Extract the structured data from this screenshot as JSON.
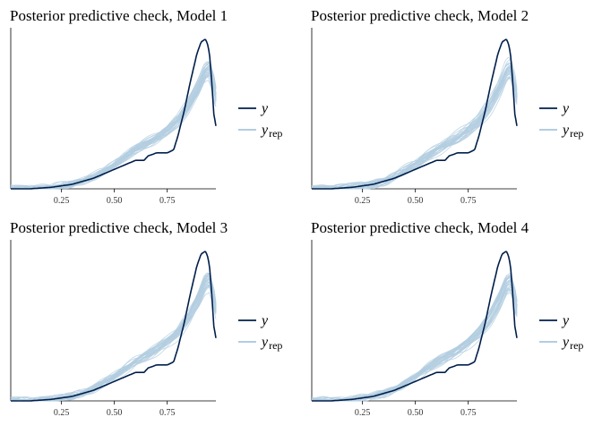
{
  "chart_data": [
    {
      "type": "line",
      "title": "Posterior predictive check, Model 1",
      "xticks": [
        0.25,
        0.5,
        0.75
      ],
      "xtick_labels": [
        "0.25",
        "0.50",
        "0.75"
      ],
      "xlim": [
        0.01,
        0.98
      ],
      "ylim": [
        0,
        1.0
      ],
      "y_axis_ticks_shown": false,
      "legend_position": "right",
      "legend": [
        {
          "label_main": "y",
          "label_sub": "",
          "color": "#011f4b"
        },
        {
          "label_main": "y",
          "label_sub": "rep",
          "color": "#b3cde0"
        }
      ],
      "series": [
        {
          "name": "y",
          "color": "#011f4b",
          "x": [
            0.01,
            0.1,
            0.2,
            0.25,
            0.3,
            0.35,
            0.4,
            0.45,
            0.5,
            0.55,
            0.6,
            0.64,
            0.66,
            0.7,
            0.75,
            0.78,
            0.8,
            0.83,
            0.86,
            0.89,
            0.91,
            0.93,
            0.94,
            0.95,
            0.96,
            0.97,
            0.98
          ],
          "y": [
            0.0,
            0.0,
            0.01,
            0.02,
            0.03,
            0.05,
            0.07,
            0.1,
            0.13,
            0.16,
            0.19,
            0.19,
            0.22,
            0.24,
            0.24,
            0.26,
            0.35,
            0.52,
            0.72,
            0.9,
            0.98,
            1.0,
            0.97,
            0.9,
            0.72,
            0.5,
            0.42
          ]
        },
        {
          "name": "y_rep",
          "color": "#b3cde0",
          "x": [
            0.01,
            0.1,
            0.2,
            0.25,
            0.3,
            0.35,
            0.4,
            0.45,
            0.5,
            0.55,
            0.6,
            0.65,
            0.7,
            0.75,
            0.8,
            0.85,
            0.9,
            0.93,
            0.95,
            0.97,
            0.98
          ],
          "y": [
            0.0,
            0.0,
            0.01,
            0.02,
            0.03,
            0.05,
            0.08,
            0.12,
            0.16,
            0.21,
            0.26,
            0.3,
            0.34,
            0.39,
            0.45,
            0.55,
            0.68,
            0.78,
            0.8,
            0.7,
            0.6
          ]
        }
      ]
    },
    {
      "type": "line",
      "title": "Posterior predictive check, Model 2",
      "xticks": [
        0.25,
        0.5,
        0.75
      ],
      "xtick_labels": [
        "0.25",
        "0.50",
        "0.75"
      ],
      "xlim": [
        0.01,
        0.98
      ],
      "ylim": [
        0,
        1.0
      ],
      "y_axis_ticks_shown": false,
      "legend_position": "right",
      "legend": [
        {
          "label_main": "y",
          "label_sub": "",
          "color": "#011f4b"
        },
        {
          "label_main": "y",
          "label_sub": "rep",
          "color": "#b3cde0"
        }
      ],
      "series": [
        {
          "name": "y",
          "color": "#011f4b",
          "x": [
            0.01,
            0.1,
            0.2,
            0.25,
            0.3,
            0.35,
            0.4,
            0.45,
            0.5,
            0.55,
            0.6,
            0.64,
            0.66,
            0.7,
            0.75,
            0.78,
            0.8,
            0.83,
            0.86,
            0.89,
            0.91,
            0.93,
            0.94,
            0.95,
            0.96,
            0.97,
            0.98
          ],
          "y": [
            0.0,
            0.0,
            0.01,
            0.02,
            0.03,
            0.05,
            0.07,
            0.1,
            0.13,
            0.16,
            0.19,
            0.19,
            0.22,
            0.24,
            0.24,
            0.26,
            0.35,
            0.52,
            0.72,
            0.9,
            0.98,
            1.0,
            0.97,
            0.9,
            0.72,
            0.5,
            0.42
          ]
        },
        {
          "name": "y_rep",
          "color": "#b3cde0",
          "x": [
            0.01,
            0.1,
            0.2,
            0.25,
            0.3,
            0.35,
            0.4,
            0.45,
            0.5,
            0.55,
            0.6,
            0.65,
            0.7,
            0.75,
            0.8,
            0.85,
            0.9,
            0.93,
            0.95,
            0.97,
            0.98
          ],
          "y": [
            0.0,
            0.0,
            0.01,
            0.02,
            0.03,
            0.05,
            0.08,
            0.12,
            0.16,
            0.21,
            0.26,
            0.3,
            0.34,
            0.39,
            0.45,
            0.55,
            0.68,
            0.78,
            0.8,
            0.7,
            0.6
          ]
        }
      ]
    },
    {
      "type": "line",
      "title": "Posterior predictive check, Model 3",
      "xticks": [
        0.25,
        0.5,
        0.75
      ],
      "xtick_labels": [
        "0.25",
        "0.50",
        "0.75"
      ],
      "xlim": [
        0.01,
        0.98
      ],
      "ylim": [
        0,
        1.0
      ],
      "y_axis_ticks_shown": false,
      "legend_position": "right",
      "legend": [
        {
          "label_main": "y",
          "label_sub": "",
          "color": "#011f4b"
        },
        {
          "label_main": "y",
          "label_sub": "rep",
          "color": "#b3cde0"
        }
      ],
      "series": [
        {
          "name": "y",
          "color": "#011f4b",
          "x": [
            0.01,
            0.1,
            0.2,
            0.25,
            0.3,
            0.35,
            0.4,
            0.45,
            0.5,
            0.55,
            0.6,
            0.64,
            0.66,
            0.7,
            0.75,
            0.78,
            0.8,
            0.83,
            0.86,
            0.89,
            0.91,
            0.93,
            0.94,
            0.95,
            0.96,
            0.97,
            0.98
          ],
          "y": [
            0.0,
            0.0,
            0.01,
            0.02,
            0.03,
            0.05,
            0.07,
            0.1,
            0.13,
            0.16,
            0.19,
            0.19,
            0.22,
            0.24,
            0.24,
            0.26,
            0.35,
            0.52,
            0.72,
            0.9,
            0.98,
            1.0,
            0.97,
            0.9,
            0.72,
            0.5,
            0.42
          ]
        },
        {
          "name": "y_rep",
          "color": "#b3cde0",
          "x": [
            0.01,
            0.1,
            0.2,
            0.25,
            0.3,
            0.35,
            0.4,
            0.45,
            0.5,
            0.55,
            0.6,
            0.65,
            0.7,
            0.75,
            0.8,
            0.85,
            0.9,
            0.93,
            0.95,
            0.97,
            0.98
          ],
          "y": [
            0.0,
            0.0,
            0.01,
            0.02,
            0.03,
            0.05,
            0.08,
            0.12,
            0.16,
            0.21,
            0.26,
            0.3,
            0.34,
            0.39,
            0.45,
            0.55,
            0.68,
            0.78,
            0.8,
            0.7,
            0.6
          ]
        }
      ]
    },
    {
      "type": "line",
      "title": "Posterior predictive check, Model 4",
      "xticks": [
        0.25,
        0.5,
        0.75
      ],
      "xtick_labels": [
        "0.25",
        "0.50",
        "0.75"
      ],
      "xlim": [
        0.01,
        0.98
      ],
      "ylim": [
        0,
        1.0
      ],
      "y_axis_ticks_shown": false,
      "legend_position": "right",
      "legend": [
        {
          "label_main": "y",
          "label_sub": "",
          "color": "#011f4b"
        },
        {
          "label_main": "y",
          "label_sub": "rep",
          "color": "#b3cde0"
        }
      ],
      "series": [
        {
          "name": "y",
          "color": "#011f4b",
          "x": [
            0.01,
            0.1,
            0.2,
            0.25,
            0.3,
            0.35,
            0.4,
            0.45,
            0.5,
            0.55,
            0.6,
            0.64,
            0.66,
            0.7,
            0.75,
            0.78,
            0.8,
            0.83,
            0.86,
            0.89,
            0.91,
            0.93,
            0.94,
            0.95,
            0.96,
            0.97,
            0.98
          ],
          "y": [
            0.0,
            0.0,
            0.01,
            0.02,
            0.03,
            0.05,
            0.07,
            0.1,
            0.13,
            0.16,
            0.19,
            0.19,
            0.22,
            0.24,
            0.24,
            0.26,
            0.35,
            0.52,
            0.72,
            0.9,
            0.98,
            1.0,
            0.97,
            0.9,
            0.72,
            0.5,
            0.42
          ]
        },
        {
          "name": "y_rep",
          "color": "#b3cde0",
          "x": [
            0.01,
            0.1,
            0.2,
            0.25,
            0.3,
            0.35,
            0.4,
            0.45,
            0.5,
            0.55,
            0.6,
            0.65,
            0.7,
            0.75,
            0.8,
            0.85,
            0.9,
            0.93,
            0.95,
            0.97,
            0.98
          ],
          "y": [
            0.0,
            0.0,
            0.01,
            0.02,
            0.03,
            0.05,
            0.08,
            0.12,
            0.16,
            0.21,
            0.26,
            0.3,
            0.34,
            0.39,
            0.45,
            0.55,
            0.68,
            0.78,
            0.8,
            0.7,
            0.6
          ]
        }
      ]
    }
  ]
}
